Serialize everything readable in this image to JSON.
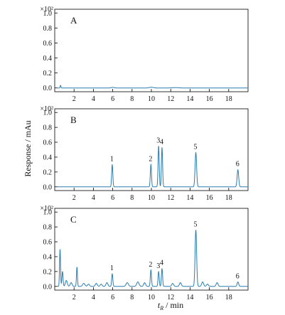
{
  "figure": {
    "ylabel": "Response / mAu",
    "xlabel_main": "t",
    "xlabel_sub": "R",
    "xlabel_unit": " / min",
    "multiplier": "×10²"
  },
  "chart_data": [
    {
      "type": "line",
      "panel": "A",
      "title": "A",
      "xlim": [
        0,
        20
      ],
      "ylim": [
        -0.05,
        1.05
      ],
      "xticks": [
        2,
        4,
        6,
        8,
        10,
        12,
        14,
        16,
        18
      ],
      "yticks": [
        0.0,
        0.2,
        0.4,
        0.6,
        0.8,
        1.0
      ],
      "baseline": 0.0,
      "noise_points": [
        {
          "t": 0.6,
          "h": 0.035,
          "w": 0.04
        },
        {
          "t": 6.0,
          "h": 0.008,
          "w": 0.15
        },
        {
          "t": 10.0,
          "h": 0.01,
          "w": 0.2
        },
        {
          "t": 12.5,
          "h": 0.005,
          "w": 0.3
        }
      ],
      "peaks": []
    },
    {
      "type": "line",
      "panel": "B",
      "title": "B",
      "xlim": [
        0,
        20
      ],
      "ylim": [
        -0.05,
        1.05
      ],
      "xticks": [
        2,
        4,
        6,
        8,
        10,
        12,
        14,
        16,
        18
      ],
      "yticks": [
        0.0,
        0.2,
        0.4,
        0.6,
        0.8,
        1.0
      ],
      "baseline": 0.0,
      "noise_points": [],
      "peaks": [
        {
          "label": "1",
          "t": 5.95,
          "h": 0.3,
          "w": 0.06
        },
        {
          "label": "2",
          "t": 9.95,
          "h": 0.3,
          "w": 0.06
        },
        {
          "label": "3",
          "t": 10.75,
          "h": 0.55,
          "w": 0.06
        },
        {
          "label": "4",
          "t": 11.1,
          "h": 0.53,
          "w": 0.06
        },
        {
          "label": "5",
          "t": 14.6,
          "h": 0.46,
          "w": 0.08
        },
        {
          "label": "6",
          "t": 18.95,
          "h": 0.23,
          "w": 0.08
        }
      ]
    },
    {
      "type": "line",
      "panel": "C",
      "title": "C",
      "xlim": [
        0,
        20
      ],
      "ylim": [
        -0.05,
        1.05
      ],
      "xticks": [
        2,
        4,
        6,
        8,
        10,
        12,
        14,
        16,
        18
      ],
      "yticks": [
        0.0,
        0.2,
        0.4,
        0.6,
        0.8,
        1.0
      ],
      "baseline": 0.0,
      "noise_points": [
        {
          "t": 0.55,
          "h": 0.5,
          "w": 0.05
        },
        {
          "t": 0.8,
          "h": 0.2,
          "w": 0.06
        },
        {
          "t": 1.2,
          "h": 0.08,
          "w": 0.1
        },
        {
          "t": 1.7,
          "h": 0.05,
          "w": 0.1
        },
        {
          "t": 2.3,
          "h": 0.26,
          "w": 0.05
        },
        {
          "t": 3.0,
          "h": 0.04,
          "w": 0.12
        },
        {
          "t": 3.5,
          "h": 0.03,
          "w": 0.1
        },
        {
          "t": 4.3,
          "h": 0.04,
          "w": 0.1
        },
        {
          "t": 4.8,
          "h": 0.03,
          "w": 0.1
        },
        {
          "t": 5.4,
          "h": 0.05,
          "w": 0.1
        },
        {
          "t": 7.5,
          "h": 0.05,
          "w": 0.12
        },
        {
          "t": 8.6,
          "h": 0.06,
          "w": 0.12
        },
        {
          "t": 9.3,
          "h": 0.05,
          "w": 0.1
        },
        {
          "t": 12.2,
          "h": 0.04,
          "w": 0.1
        },
        {
          "t": 13.0,
          "h": 0.05,
          "w": 0.1
        },
        {
          "t": 15.3,
          "h": 0.06,
          "w": 0.1
        },
        {
          "t": 15.8,
          "h": 0.03,
          "w": 0.1
        },
        {
          "t": 16.8,
          "h": 0.05,
          "w": 0.1
        }
      ],
      "peaks": [
        {
          "label": "1",
          "t": 5.95,
          "h": 0.17,
          "w": 0.06
        },
        {
          "label": "2",
          "t": 9.95,
          "h": 0.22,
          "w": 0.06
        },
        {
          "label": "3",
          "t": 10.75,
          "h": 0.2,
          "w": 0.06
        },
        {
          "label": "4",
          "t": 11.1,
          "h": 0.24,
          "w": 0.06
        },
        {
          "label": "5",
          "t": 14.6,
          "h": 0.76,
          "w": 0.08
        },
        {
          "label": "6",
          "t": 18.95,
          "h": 0.06,
          "w": 0.08
        }
      ]
    }
  ]
}
